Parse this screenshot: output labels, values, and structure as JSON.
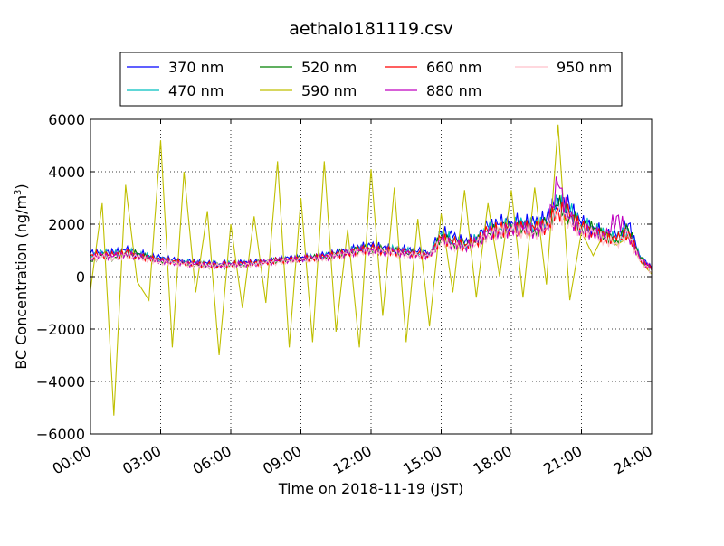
{
  "chart_data": {
    "type": "line",
    "title": "aethalo181119.csv",
    "xlabel": "Time on 2018-11-19 (JST)",
    "ylabel_main": "BC Concentration (ng/m",
    "ylabel_sup": "3",
    "ylabel_tail": ")",
    "xlim": [
      "00:00",
      "24:00"
    ],
    "ylim": [
      -6000,
      6000
    ],
    "x_ticks": [
      "00:00",
      "03:00",
      "06:00",
      "09:00",
      "12:00",
      "15:00",
      "18:00",
      "21:00",
      "24:00"
    ],
    "y_ticks": [
      "6000",
      "4000",
      "2000",
      "0",
      "−2000",
      "−4000",
      "−6000"
    ],
    "grid": true,
    "legend_position": "top, above plot",
    "x": [
      "00:00",
      "00:30",
      "01:00",
      "01:30",
      "02:00",
      "02:30",
      "03:00",
      "03:30",
      "04:00",
      "04:30",
      "05:00",
      "05:30",
      "06:00",
      "06:30",
      "07:00",
      "07:30",
      "08:00",
      "08:30",
      "09:00",
      "09:30",
      "10:00",
      "10:30",
      "11:00",
      "11:30",
      "12:00",
      "12:30",
      "13:00",
      "13:30",
      "14:00",
      "14:30",
      "15:00",
      "15:30",
      "16:00",
      "16:30",
      "17:00",
      "17:30",
      "18:00",
      "18:30",
      "19:00",
      "19:30",
      "20:00",
      "20:30",
      "21:00",
      "21:30",
      "22:00",
      "22:30",
      "23:00",
      "23:30",
      "24:00"
    ],
    "series": [
      {
        "name": "370 nm",
        "color": "#0000ff",
        "values": [
          900,
          950,
          900,
          1000,
          900,
          800,
          700,
          650,
          600,
          550,
          500,
          480,
          500,
          520,
          550,
          600,
          650,
          700,
          720,
          750,
          800,
          900,
          1000,
          1100,
          1150,
          1100,
          1050,
          1000,
          950,
          900,
          1700,
          1500,
          1300,
          1500,
          1900,
          2000,
          2100,
          2050,
          2000,
          2200,
          3000,
          2600,
          2000,
          1900,
          1600,
          1500,
          2000,
          800,
          300
        ]
      },
      {
        "name": "470 nm",
        "color": "#00bfbf",
        "values": [
          850,
          900,
          850,
          950,
          850,
          750,
          650,
          600,
          550,
          500,
          480,
          460,
          480,
          500,
          520,
          560,
          620,
          660,
          700,
          720,
          760,
          860,
          950,
          1050,
          1100,
          1050,
          1000,
          950,
          900,
          850,
          1600,
          1400,
          1250,
          1400,
          1750,
          1850,
          1950,
          1950,
          1900,
          2100,
          2800,
          2450,
          1950,
          1850,
          1550,
          1450,
          1850,
          750,
          250
        ]
      },
      {
        "name": "520 nm",
        "color": "#008000",
        "values": [
          600,
          800,
          700,
          900,
          850,
          700,
          600,
          550,
          500,
          450,
          420,
          400,
          430,
          460,
          500,
          540,
          600,
          640,
          680,
          700,
          750,
          850,
          900,
          1000,
          1050,
          1000,
          950,
          900,
          850,
          800,
          1500,
          1300,
          1200,
          1300,
          1650,
          1750,
          1850,
          1850,
          1800,
          2000,
          2700,
          2350,
          1900,
          1800,
          1500,
          1400,
          1800,
          700,
          200
        ]
      },
      {
        "name": "590 nm",
        "color": "#bfbf00",
        "values": [
          -500,
          2800,
          -5300,
          3500,
          -200,
          -900,
          5200,
          -2700,
          4000,
          -600,
          2500,
          -3000,
          2000,
          -1200,
          2300,
          -1000,
          4400,
          -2700,
          3000,
          -2500,
          4400,
          -2100,
          1800,
          -2700,
          4100,
          -1500,
          3400,
          -2500,
          2200,
          -1900,
          2400,
          -600,
          3300,
          -800,
          2800,
          0,
          3300,
          -800,
          3400,
          -300,
          5800,
          -900,
          1700,
          800,
          1700,
          1200,
          1500,
          600,
          100
        ]
      },
      {
        "name": "660 nm",
        "color": "#ff0000",
        "values": [
          800,
          850,
          800,
          900,
          800,
          700,
          620,
          580,
          520,
          480,
          450,
          440,
          460,
          480,
          510,
          560,
          610,
          650,
          690,
          710,
          740,
          840,
          920,
          1000,
          1050,
          1000,
          950,
          900,
          860,
          820,
          1450,
          1300,
          1200,
          1350,
          1700,
          1800,
          1850,
          1850,
          1800,
          1950,
          2600,
          2300,
          1850,
          1750,
          1500,
          1400,
          1700,
          700,
          250
        ]
      },
      {
        "name": "880 nm",
        "color": "#bf00bf",
        "values": [
          750,
          800,
          780,
          880,
          780,
          680,
          600,
          560,
          500,
          470,
          440,
          430,
          450,
          470,
          500,
          540,
          600,
          640,
          680,
          700,
          730,
          830,
          900,
          980,
          1030,
          980,
          930,
          880,
          840,
          800,
          1400,
          1250,
          1150,
          1300,
          1650,
          1750,
          1800,
          1800,
          1750,
          1900,
          3500,
          2200,
          1800,
          1700,
          1450,
          2300,
          1650,
          650,
          300
        ]
      },
      {
        "name": "950 nm",
        "color": "#ffc0cb",
        "values": [
          700,
          750,
          720,
          820,
          730,
          640,
          560,
          520,
          470,
          440,
          410,
          400,
          420,
          440,
          470,
          510,
          560,
          600,
          640,
          660,
          690,
          790,
          860,
          940,
          990,
          940,
          890,
          840,
          800,
          760,
          1350,
          1200,
          1100,
          1250,
          1600,
          1700,
          1750,
          1750,
          1700,
          1850,
          2400,
          2150,
          1750,
          1650,
          1400,
          1300,
          1600,
          600,
          200
        ]
      }
    ]
  }
}
